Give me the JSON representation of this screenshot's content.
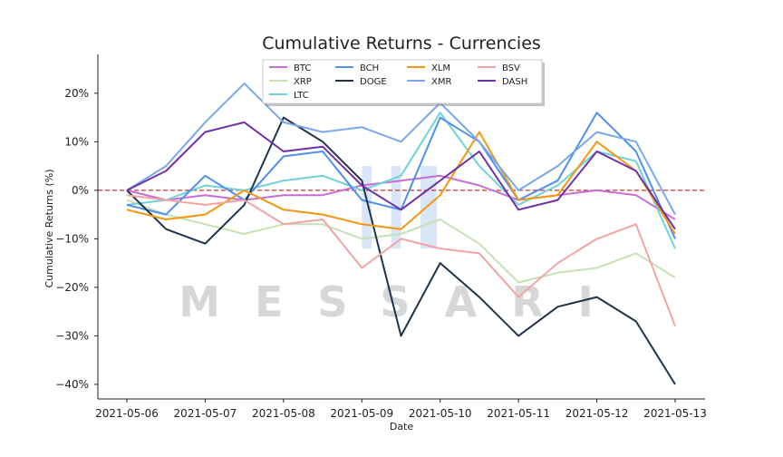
{
  "watermark": "MESSARI",
  "colors": {
    "zero_line": "#c0392b",
    "highlight": "#a9c8ef",
    "axis": "#222222"
  },
  "chart_data": {
    "type": "line",
    "title": "Cumulative Returns - Currencies",
    "xlabel": "Date",
    "ylabel": "Cumulative Returns (%)",
    "xlim": [
      "2021-05-06",
      "2021-05-13"
    ],
    "ylim": [
      -43,
      28
    ],
    "y_ticks": [
      20,
      10,
      0,
      -10,
      -20,
      -30,
      -40
    ],
    "y_tick_labels": [
      "20%",
      "10%",
      "0%",
      "−10%",
      "−20%",
      "−30%",
      "−40%"
    ],
    "x_ticks": [
      "2021-05-06",
      "2021-05-07",
      "2021-05-08",
      "2021-05-09",
      "2021-05-10",
      "2021-05-11",
      "2021-05-12",
      "2021-05-13"
    ],
    "zero_line": 0,
    "grid": false,
    "legend": "top-center",
    "highlight_ranges": [
      [
        "2021-05-09 00:00",
        "2021-05-09 03:00"
      ],
      [
        "2021-05-09 09:00",
        "2021-05-09 12:00"
      ],
      [
        "2021-05-09 18:00",
        "2021-05-09 23:00"
      ]
    ],
    "series": [
      {
        "name": "BTC",
        "color": "#c86dd7",
        "x": [
          "2021-05-06 00:00",
          "2021-05-06 12:00",
          "2021-05-07 00:00",
          "2021-05-07 12:00",
          "2021-05-08 00:00",
          "2021-05-08 12:00",
          "2021-05-09 00:00",
          "2021-05-09 12:00",
          "2021-05-10 00:00",
          "2021-05-10 12:00",
          "2021-05-11 00:00",
          "2021-05-11 12:00",
          "2021-05-12 00:00",
          "2021-05-12 12:00",
          "2021-05-13 00:00"
        ],
        "values": [
          0,
          -2,
          -1,
          -2,
          -1,
          -1,
          1,
          2,
          3,
          1,
          -2,
          -1,
          0,
          -1,
          -6
        ]
      },
      {
        "name": "XRP",
        "color": "#c6e2b5",
        "x": [
          "2021-05-06 00:00",
          "2021-05-06 12:00",
          "2021-05-07 00:00",
          "2021-05-07 12:00",
          "2021-05-08 00:00",
          "2021-05-08 12:00",
          "2021-05-09 00:00",
          "2021-05-09 12:00",
          "2021-05-10 00:00",
          "2021-05-10 12:00",
          "2021-05-11 00:00",
          "2021-05-11 12:00",
          "2021-05-12 00:00",
          "2021-05-12 12:00",
          "2021-05-13 00:00"
        ],
        "values": [
          -2,
          -5,
          -7,
          -9,
          -7,
          -7,
          -10,
          -9,
          -6,
          -11,
          -19,
          -17,
          -16,
          -13,
          -18
        ]
      },
      {
        "name": "LTC",
        "color": "#6fd3dc",
        "x": [
          "2021-05-06 00:00",
          "2021-05-06 12:00",
          "2021-05-07 00:00",
          "2021-05-07 12:00",
          "2021-05-08 00:00",
          "2021-05-08 12:00",
          "2021-05-09 00:00",
          "2021-05-09 12:00",
          "2021-05-10 00:00",
          "2021-05-10 12:00",
          "2021-05-11 00:00",
          "2021-05-11 12:00",
          "2021-05-12 00:00",
          "2021-05-12 12:00",
          "2021-05-13 00:00"
        ],
        "values": [
          -3,
          -2,
          1,
          0,
          2,
          3,
          0,
          3,
          16,
          5,
          -3,
          1,
          8,
          6,
          -12
        ]
      },
      {
        "name": "BCH",
        "color": "#4f8ff0",
        "x": [
          "2021-05-06 00:00",
          "2021-05-06 12:00",
          "2021-05-07 00:00",
          "2021-05-07 12:00",
          "2021-05-08 00:00",
          "2021-05-08 12:00",
          "2021-05-09 00:00",
          "2021-05-09 12:00",
          "2021-05-10 00:00",
          "2021-05-10 12:00",
          "2021-05-11 00:00",
          "2021-05-11 12:00",
          "2021-05-12 00:00",
          "2021-05-12 12:00",
          "2021-05-13 00:00"
        ],
        "values": [
          -3,
          -5,
          3,
          -2,
          7,
          8,
          -2,
          -4,
          15,
          10,
          -2,
          2,
          16,
          8,
          -10
        ]
      },
      {
        "name": "DOGE",
        "color": "#1f3349",
        "x": [
          "2021-05-06 00:00",
          "2021-05-06 12:00",
          "2021-05-07 00:00",
          "2021-05-07 12:00",
          "2021-05-08 00:00",
          "2021-05-08 12:00",
          "2021-05-09 00:00",
          "2021-05-09 12:00",
          "2021-05-10 00:00",
          "2021-05-10 12:00",
          "2021-05-11 00:00",
          "2021-05-11 12:00",
          "2021-05-12 00:00",
          "2021-05-12 12:00",
          "2021-05-13 00:00"
        ],
        "values": [
          0,
          -8,
          -11,
          -3,
          15,
          10,
          2,
          -30,
          -15,
          -22,
          -30,
          -24,
          -22,
          -27,
          -40
        ]
      },
      {
        "name": "XLM",
        "color": "#f5960f",
        "x": [
          "2021-05-06 00:00",
          "2021-05-06 12:00",
          "2021-05-07 00:00",
          "2021-05-07 12:00",
          "2021-05-08 00:00",
          "2021-05-08 12:00",
          "2021-05-09 00:00",
          "2021-05-09 12:00",
          "2021-05-10 00:00",
          "2021-05-10 12:00",
          "2021-05-11 00:00",
          "2021-05-11 12:00",
          "2021-05-12 00:00",
          "2021-05-12 12:00",
          "2021-05-13 00:00"
        ],
        "values": [
          -4,
          -6,
          -5,
          0,
          -4,
          -5,
          -7,
          -8,
          -1,
          12,
          -2,
          -1,
          10,
          4,
          -9
        ]
      },
      {
        "name": "XMR",
        "color": "#79a8ef",
        "x": [
          "2021-05-06 00:00",
          "2021-05-06 12:00",
          "2021-05-07 00:00",
          "2021-05-07 12:00",
          "2021-05-08 00:00",
          "2021-05-08 12:00",
          "2021-05-09 00:00",
          "2021-05-09 12:00",
          "2021-05-10 00:00",
          "2021-05-10 12:00",
          "2021-05-11 00:00",
          "2021-05-11 12:00",
          "2021-05-12 00:00",
          "2021-05-12 12:00",
          "2021-05-13 00:00"
        ],
        "values": [
          0,
          5,
          14,
          22,
          14,
          12,
          13,
          10,
          18,
          10,
          0,
          5,
          12,
          10,
          -5
        ]
      },
      {
        "name": "BSV",
        "color": "#f2a4a4",
        "x": [
          "2021-05-06 00:00",
          "2021-05-06 12:00",
          "2021-05-07 00:00",
          "2021-05-07 12:00",
          "2021-05-08 00:00",
          "2021-05-08 12:00",
          "2021-05-09 00:00",
          "2021-05-09 12:00",
          "2021-05-10 00:00",
          "2021-05-10 12:00",
          "2021-05-11 00:00",
          "2021-05-11 12:00",
          "2021-05-12 00:00",
          "2021-05-12 12:00",
          "2021-05-13 00:00"
        ],
        "values": [
          -1,
          -2,
          -3,
          -2,
          -7,
          -6,
          -16,
          -10,
          -12,
          -13,
          -22,
          -15,
          -10,
          -7,
          -28
        ]
      },
      {
        "name": "DASH",
        "color": "#7030a8",
        "x": [
          "2021-05-06 00:00",
          "2021-05-06 12:00",
          "2021-05-07 00:00",
          "2021-05-07 12:00",
          "2021-05-08 00:00",
          "2021-05-08 12:00",
          "2021-05-09 00:00",
          "2021-05-09 12:00",
          "2021-05-10 00:00",
          "2021-05-10 12:00",
          "2021-05-11 00:00",
          "2021-05-11 12:00",
          "2021-05-12 00:00",
          "2021-05-12 12:00",
          "2021-05-13 00:00"
        ],
        "values": [
          0,
          4,
          12,
          14,
          8,
          9,
          1,
          -4,
          2,
          8,
          -4,
          -2,
          8,
          4,
          -8
        ]
      }
    ]
  }
}
